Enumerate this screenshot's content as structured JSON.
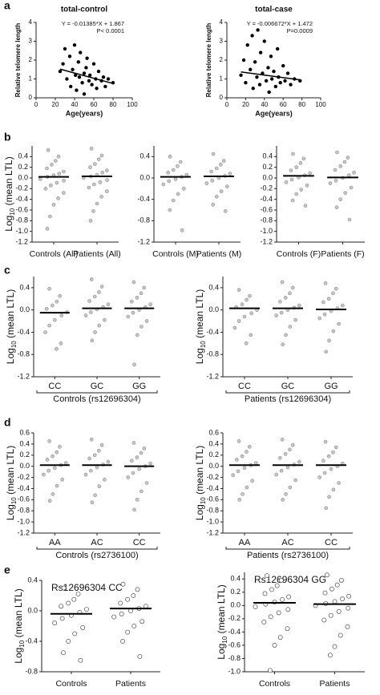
{
  "panels": [
    "a",
    "b",
    "c",
    "d",
    "e"
  ],
  "chart_data": [
    {
      "type": "scatter",
      "title": "total-control",
      "xlabel": "Age(years)",
      "ylabel": "Relative telomere length",
      "annotations": [
        "Y = -0.01385*X + 1.867",
        "P< 0.0001"
      ],
      "trend": {
        "slope": -0.01385,
        "intercept": 1.867
      },
      "x": [
        25,
        28,
        30,
        32,
        35,
        36,
        38,
        40,
        41,
        42,
        44,
        45,
        46,
        48,
        50,
        50,
        52,
        53,
        55,
        56,
        58,
        60,
        62,
        63,
        65,
        68,
        70,
        72,
        75,
        80
      ],
      "y": [
        1.4,
        1.8,
        2.6,
        1.0,
        2.2,
        0.6,
        1.5,
        2.8,
        1.2,
        0.4,
        1.9,
        1.1,
        2.4,
        0.8,
        1.3,
        0.2,
        1.6,
        2.1,
        0.9,
        1.2,
        0.7,
        1.8,
        1.0,
        0.5,
        1.4,
        0.9,
        1.1,
        0.6,
        1.0,
        0.8
      ],
      "xlim": [
        0,
        100
      ],
      "xticks": [
        0,
        20,
        40,
        60,
        80,
        100
      ],
      "ylim": [
        0,
        4
      ],
      "yticks": [
        0,
        1,
        2,
        3,
        4
      ],
      "color": "#000000"
    },
    {
      "type": "scatter",
      "title": "total-case",
      "xlabel": "Age(years)",
      "ylabel": "Relative telomere length",
      "annotations": [
        "Y = -0.006672*X + 1.472",
        "P=0.0009"
      ],
      "trend": {
        "slope": -0.006672,
        "intercept": 1.472
      },
      "x": [
        15,
        18,
        20,
        22,
        25,
        27,
        28,
        30,
        32,
        33,
        35,
        36,
        38,
        40,
        42,
        44,
        45,
        47,
        48,
        50,
        52,
        54,
        55,
        57,
        60,
        62,
        65,
        68,
        72,
        78
      ],
      "y": [
        1.2,
        2.0,
        0.8,
        2.8,
        1.5,
        3.3,
        0.5,
        1.9,
        1.1,
        3.6,
        0.7,
        2.4,
        1.3,
        3.0,
        0.9,
        1.6,
        0.3,
        2.2,
        1.0,
        1.4,
        0.6,
        2.6,
        1.1,
        0.8,
        1.7,
        0.9,
        1.3,
        0.7,
        1.0,
        0.9
      ],
      "xlim": [
        0,
        100
      ],
      "xticks": [
        0,
        20,
        40,
        60,
        80,
        100
      ],
      "ylim": [
        0,
        4
      ],
      "yticks": [
        0,
        1,
        2,
        3,
        4
      ],
      "color": "#000000"
    },
    {
      "type": "dotplot",
      "ylabel": {
        "base": "Log",
        "sub": "10",
        "rest": " (mean LTL)"
      },
      "ylim": [
        -1.2,
        0.6
      ],
      "yticks": [
        0.4,
        0.2,
        {
          "value": 0,
          "label": "0.0"
        },
        -0.2,
        -0.4,
        -0.6,
        -0.8,
        {
          "value": -1,
          "label": "-1.0"
        },
        -1.2
      ],
      "categories": [
        "Controls (All)",
        "Patients (All)"
      ],
      "marker": "filled",
      "groups": [
        {
          "values": [
            0.52,
            0.4,
            0.32,
            0.25,
            0.18,
            0.12,
            0.08,
            0.05,
            0.02,
            -0.02,
            -0.05,
            -0.09,
            -0.14,
            -0.2,
            -0.28,
            -0.38,
            -0.5,
            -0.72,
            -0.95
          ],
          "mean": 0.02
        },
        {
          "values": [
            0.55,
            0.42,
            0.35,
            0.26,
            0.2,
            0.14,
            0.1,
            0.06,
            0.03,
            0,
            -0.04,
            -0.08,
            -0.12,
            -0.18,
            -0.25,
            -0.35,
            -0.48,
            -0.62,
            -0.8
          ],
          "mean": 0.03
        }
      ]
    },
    {
      "type": "dotplot",
      "ylim": [
        -1.2,
        0.6
      ],
      "yticks": [
        0.4,
        {
          "value": 0,
          "label": "0.0"
        },
        -0.4,
        -0.8,
        -1.2
      ],
      "categories": [
        "Controls (M)",
        "Patients (M)"
      ],
      "marker": "filled",
      "groups": [
        {
          "values": [
            0.4,
            0.3,
            0.22,
            0.15,
            0.1,
            0.06,
            0.02,
            -0.02,
            -0.06,
            -0.12,
            -0.2,
            -0.3,
            -0.42,
            -0.6,
            -0.98
          ],
          "mean": 0.02
        },
        {
          "values": [
            0.45,
            0.32,
            0.25,
            0.18,
            0.12,
            0.08,
            0.04,
            0,
            -0.05,
            -0.1,
            -0.16,
            -0.25,
            -0.35,
            -0.5,
            -0.62
          ],
          "mean": 0.03
        }
      ]
    },
    {
      "type": "dotplot",
      "ylim": [
        -1.2,
        0.6
      ],
      "yticks": [
        0.4,
        0.2,
        {
          "value": 0,
          "label": "0.0"
        },
        -0.2,
        -0.4,
        -0.6,
        -0.8,
        {
          "value": -1,
          "label": "-1.0"
        },
        -1.2
      ],
      "categories": [
        "Controls (F)",
        "Patients (F)"
      ],
      "marker": "filled",
      "groups": [
        {
          "values": [
            0.45,
            0.36,
            0.28,
            0.2,
            0.14,
            0.09,
            0.05,
            0.01,
            -0.03,
            -0.08,
            -0.14,
            -0.22,
            -0.3,
            -0.42,
            -0.52
          ],
          "mean": 0.04
        },
        {
          "values": [
            0.48,
            0.38,
            0.3,
            0.22,
            0.15,
            0.1,
            0.05,
            0,
            -0.05,
            -0.1,
            -0.18,
            -0.28,
            -0.4,
            -0.55,
            -0.78
          ],
          "mean": 0.01
        }
      ]
    },
    {
      "type": "dotplot",
      "ylabel": {
        "base": "Log",
        "sub": "10",
        "rest": " (mean LTL)"
      },
      "ylim": [
        -1.2,
        0.6
      ],
      "yticks": [
        0.4,
        {
          "value": 0,
          "label": "0.0"
        },
        -0.4,
        -0.8,
        -1.2
      ],
      "categories": [
        "CC",
        "GC",
        "GG"
      ],
      "group_label": "Controls (rs12696304)",
      "marker": "filled",
      "groups": [
        {
          "values": [
            0.38,
            0.25,
            0.15,
            0.08,
            0.02,
            -0.04,
            -0.1,
            -0.18,
            -0.28,
            -0.4,
            -0.6,
            -0.7
          ],
          "mean": -0.05
        },
        {
          "values": [
            0.55,
            0.42,
            0.32,
            0.24,
            0.16,
            0.1,
            0.05,
            0.01,
            -0.04,
            -0.1,
            -0.18,
            -0.28,
            -0.4,
            -0.55
          ],
          "mean": 0.03
        },
        {
          "values": [
            0.5,
            0.4,
            0.3,
            0.22,
            0.15,
            0.1,
            0.05,
            0,
            -0.05,
            -0.12,
            -0.2,
            -0.3,
            -0.45,
            -0.98
          ],
          "mean": 0.03
        }
      ]
    },
    {
      "type": "dotplot",
      "ylabel": {
        "base": "Log",
        "sub": "10",
        "rest": " (mean LTL)"
      },
      "ylim": [
        -1.2,
        0.6
      ],
      "yticks": [
        0.4,
        {
          "value": 0,
          "label": "0.0"
        },
        -0.4,
        -0.8,
        -1.2
      ],
      "categories": [
        "CC",
        "GC",
        "GG"
      ],
      "group_label": "Patients (rs12696304)",
      "marker": "filled",
      "groups": [
        {
          "values": [
            0.36,
            0.25,
            0.18,
            0.1,
            0.05,
            0,
            -0.06,
            -0.12,
            -0.2,
            -0.32,
            -0.45,
            -0.6
          ],
          "mean": 0.03
        },
        {
          "values": [
            0.5,
            0.4,
            0.3,
            0.22,
            0.15,
            0.08,
            0.04,
            0,
            -0.05,
            -0.1,
            -0.18,
            -0.3,
            -0.45,
            -0.62
          ],
          "mean": 0.03
        },
        {
          "values": [
            0.48,
            0.38,
            0.3,
            0.2,
            0.14,
            0.08,
            0.03,
            -0.02,
            -0.08,
            -0.15,
            -0.25,
            -0.38,
            -0.55,
            -0.75
          ],
          "mean": 0.01
        }
      ]
    },
    {
      "type": "dotplot",
      "ylabel": {
        "base": "Log",
        "sub": "10",
        "rest": " (mean LTL)"
      },
      "ylim": [
        -1.2,
        0.6
      ],
      "yticks": [
        0.6,
        0.4,
        0.2,
        {
          "value": 0,
          "label": "0.0"
        },
        -0.2,
        -0.4,
        -0.6,
        -0.8,
        {
          "value": -1,
          "label": "-1.0"
        },
        -1.2
      ],
      "categories": [
        "AA",
        "AC",
        "CC"
      ],
      "group_label": "Controls (rs2736100)",
      "marker": "filled",
      "groups": [
        {
          "values": [
            0.45,
            0.35,
            0.25,
            0.18,
            0.12,
            0.06,
            0.02,
            -0.03,
            -0.08,
            -0.15,
            -0.24,
            -0.35,
            -0.5,
            -0.62
          ],
          "mean": 0.02
        },
        {
          "values": [
            0.48,
            0.38,
            0.28,
            0.2,
            0.14,
            0.08,
            0.03,
            -0.02,
            -0.08,
            -0.15,
            -0.24,
            -0.36,
            -0.52,
            -0.65
          ],
          "mean": 0.02
        },
        {
          "values": [
            0.42,
            0.32,
            0.24,
            0.16,
            0.1,
            0.05,
            0,
            -0.05,
            -0.12,
            -0.2,
            -0.3,
            -0.45,
            -0.6,
            -0.78
          ],
          "mean": 0.0
        }
      ]
    },
    {
      "type": "dotplot",
      "ylabel": {
        "base": "Log",
        "sub": "10",
        "rest": " (mean LTL)"
      },
      "ylim": [
        -1.2,
        0.6
      ],
      "yticks": [
        0.6,
        0.4,
        0.2,
        {
          "value": 0,
          "label": "0.0"
        },
        -0.2,
        -0.4,
        -0.6,
        -0.8,
        {
          "value": -1,
          "label": "-1.0"
        },
        -1.2
      ],
      "categories": [
        "AA",
        "AC",
        "CC"
      ],
      "group_label": "Patients (rs2736100)",
      "marker": "filled",
      "groups": [
        {
          "values": [
            0.45,
            0.35,
            0.26,
            0.18,
            0.12,
            0.06,
            0.02,
            -0.03,
            -0.09,
            -0.16,
            -0.26,
            -0.38,
            -0.5,
            -0.6
          ],
          "mean": 0.02
        },
        {
          "values": [
            0.48,
            0.38,
            0.3,
            0.22,
            0.15,
            0.08,
            0.03,
            -0.02,
            -0.08,
            -0.15,
            -0.25,
            -0.38,
            -0.5,
            -0.6
          ],
          "mean": 0.02
        },
        {
          "values": [
            0.44,
            0.34,
            0.25,
            0.18,
            0.1,
            0.05,
            0,
            -0.05,
            -0.12,
            -0.2,
            -0.3,
            -0.42,
            -0.55,
            -0.75
          ],
          "mean": 0.02
        }
      ]
    },
    {
      "type": "dotplot",
      "title": "Rs12696304 CC",
      "ylabel": {
        "base": "Log",
        "sub": "10",
        "rest": " (mean LTL)"
      },
      "ylim": [
        -0.8,
        0.4
      ],
      "yticks": [
        0.4,
        {
          "value": 0,
          "label": "0.0"
        },
        -0.4,
        -0.8
      ],
      "categories": [
        "Controls",
        "Patients"
      ],
      "marker": "open",
      "groups": [
        {
          "values": [
            0.3,
            0.22,
            0.15,
            0.1,
            0.06,
            0.02,
            -0.02,
            -0.06,
            -0.1,
            -0.16,
            -0.22,
            -0.3,
            -0.4,
            -0.55,
            -0.65
          ],
          "mean": -0.04
        },
        {
          "values": [
            0.35,
            0.28,
            0.2,
            0.15,
            0.1,
            0.06,
            0.03,
            0,
            -0.04,
            -0.08,
            -0.14,
            -0.2,
            -0.28,
            -0.4,
            -0.6
          ],
          "mean": 0.03
        }
      ]
    },
    {
      "type": "dotplot",
      "title": "Rs12696304 GG",
      "ylabel": {
        "base": "Log",
        "sub": "10",
        "rest": " (mean LTL)"
      },
      "ylim": [
        -1.0,
        0.5
      ],
      "yticks": [
        0.4,
        0.2,
        {
          "value": 0,
          "label": "0.0"
        },
        -0.2,
        -0.4,
        -0.6,
        -0.8,
        {
          "value": -1,
          "label": "-1.0"
        }
      ],
      "categories": [
        "Controls",
        "Patients"
      ],
      "marker": "open",
      "groups": [
        {
          "values": [
            0.45,
            0.38,
            0.3,
            0.24,
            0.18,
            0.13,
            0.09,
            0.05,
            0.02,
            -0.02,
            -0.06,
            -0.11,
            -0.17,
            -0.25,
            -0.35,
            -0.48,
            -0.6,
            -0.98
          ],
          "mean": 0.04
        },
        {
          "values": [
            0.46,
            0.38,
            0.31,
            0.25,
            0.19,
            0.14,
            0.1,
            0.06,
            0.03,
            0,
            -0.04,
            -0.09,
            -0.15,
            -0.22,
            -0.32,
            -0.45,
            -0.62,
            -0.75
          ],
          "mean": 0.02
        }
      ]
    }
  ]
}
